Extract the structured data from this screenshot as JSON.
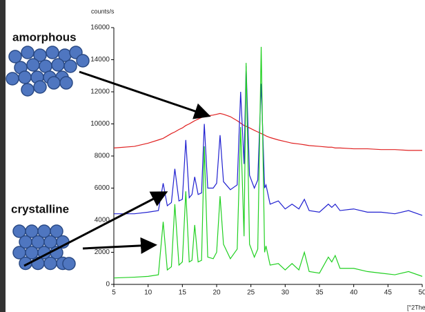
{
  "chart_data": {
    "type": "line",
    "ylabel": "counts/s",
    "xlabel": "[°2The",
    "annotations": [
      "amorphous",
      "crystalline"
    ],
    "x": [
      5,
      8,
      10,
      11.5,
      12.2,
      12.8,
      13.4,
      13.9,
      14.5,
      15,
      15.5,
      16,
      16.4,
      16.8,
      17.3,
      17.8,
      18.2,
      18.7,
      19.5,
      20,
      20.5,
      21,
      22,
      23,
      23.5,
      24,
      24.3,
      24.8,
      25.5,
      26,
      26.5,
      27,
      27.2,
      27.8,
      29,
      30,
      31,
      32,
      32.8,
      33.5,
      35,
      36.3,
      36.8,
      37.3,
      38,
      40,
      42,
      44,
      46,
      48,
      50
    ],
    "series": [
      {
        "color": "#e02020",
        "values": [
          8500,
          8600,
          8800,
          9000,
          9100,
          9250,
          9400,
          9500,
          9650,
          9750,
          9900,
          10000,
          10100,
          10200,
          10300,
          10400,
          10450,
          10500,
          10550,
          10600,
          10650,
          10600,
          10450,
          10200,
          10050,
          9900,
          9850,
          9750,
          9600,
          9500,
          9400,
          9300,
          9250,
          9150,
          9000,
          8900,
          8800,
          8750,
          8700,
          8650,
          8600,
          8550,
          8550,
          8500,
          8500,
          8450,
          8450,
          8400,
          8400,
          8350,
          8350
        ]
      },
      {
        "color": "#2020d0",
        "values": [
          4400,
          4400,
          4500,
          4600,
          6300,
          4900,
          5100,
          7200,
          5200,
          5300,
          9000,
          5400,
          5600,
          6700,
          5600,
          5700,
          10000,
          6000,
          6000,
          6300,
          9300,
          6400,
          5900,
          6200,
          12000,
          7500,
          13600,
          6800,
          6000,
          6500,
          12500,
          6000,
          6200,
          5000,
          5200,
          4700,
          5000,
          4700,
          5300,
          4600,
          4500,
          5000,
          4800,
          5000,
          4600,
          4700,
          4500,
          4500,
          4400,
          4600,
          4300
        ]
      },
      {
        "color": "#20d020",
        "values": [
          400,
          450,
          500,
          600,
          3900,
          900,
          1100,
          5000,
          1200,
          1400,
          5800,
          1400,
          1500,
          3700,
          1400,
          1500,
          8600,
          1700,
          1600,
          2000,
          5500,
          2500,
          1600,
          2200,
          9800,
          3000,
          13800,
          2500,
          1700,
          2200,
          14800,
          2000,
          2400,
          1200,
          1300,
          900,
          1300,
          900,
          2000,
          800,
          700,
          1700,
          1400,
          1800,
          1000,
          1000,
          800,
          700,
          600,
          800,
          500
        ]
      }
    ],
    "xlim": [
      5,
      50
    ],
    "xticks": [
      5,
      10,
      15,
      20,
      25,
      30,
      35,
      40,
      45,
      50
    ],
    "ylim": [
      0,
      16000
    ],
    "yticks": [
      0,
      2000,
      4000,
      6000,
      8000,
      10000,
      12000,
      14000,
      16000
    ]
  }
}
